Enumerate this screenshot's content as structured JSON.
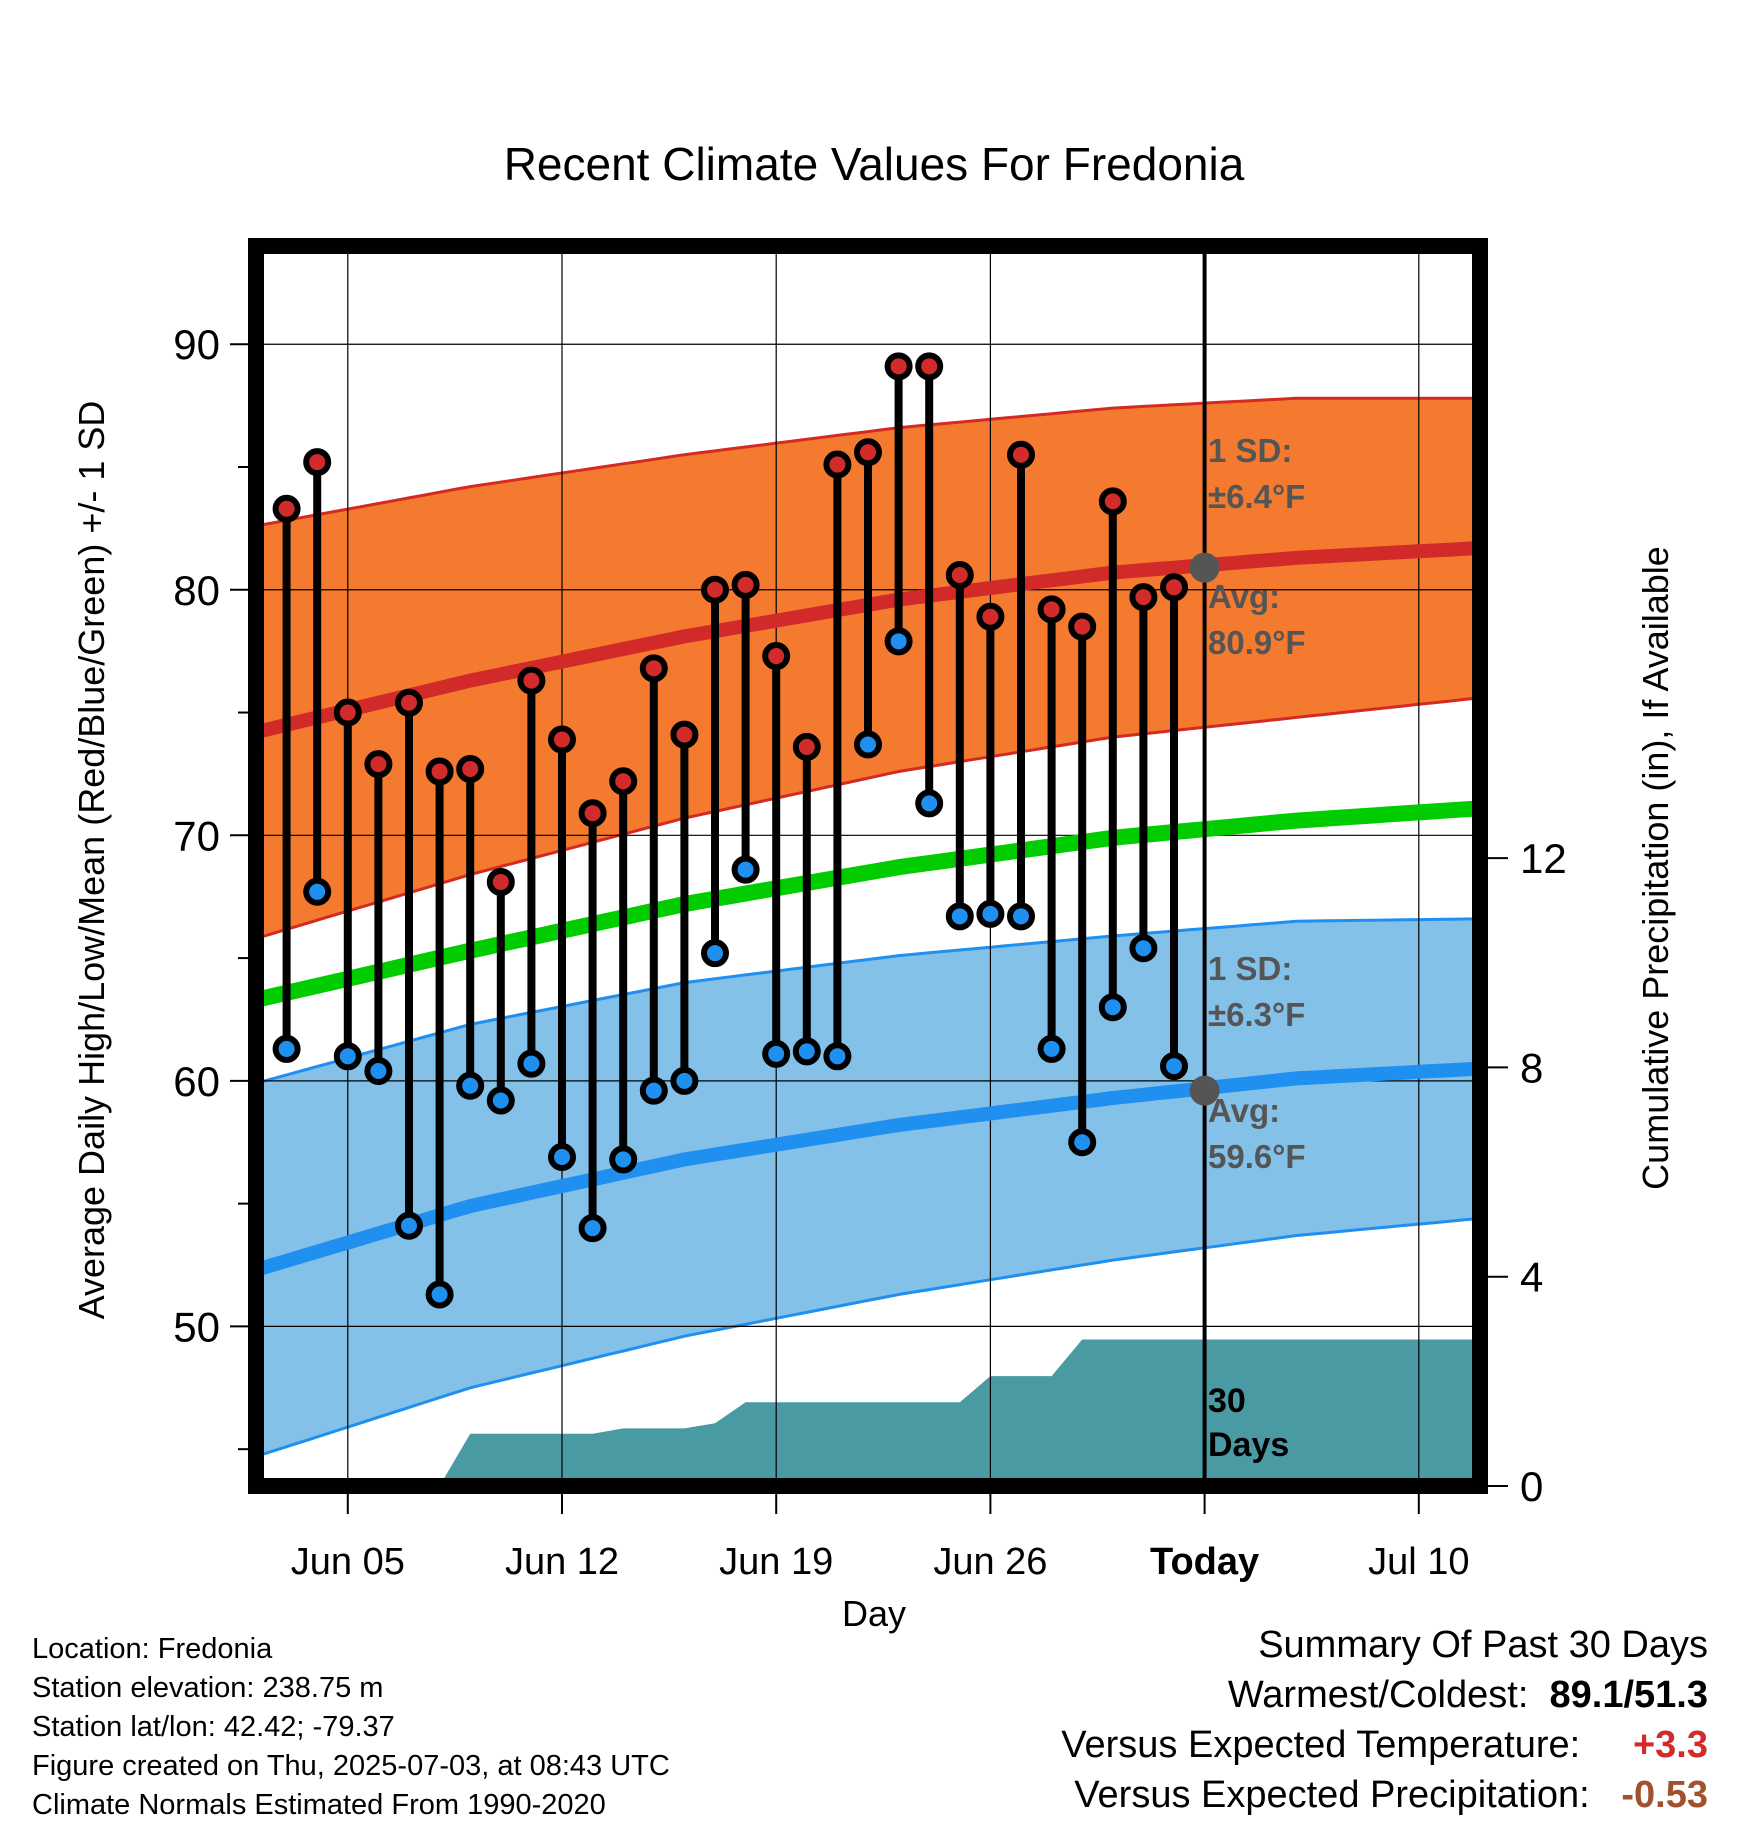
{
  "chart_data": {
    "type": "line",
    "title": "Recent Climate Values For Fredonia",
    "xlabel": "Day",
    "ylabel": "Average Daily High/Low/Mean (Red/Blue/Green) +/- 1 SD",
    "y2label": "Cumulative Precipitation (in), If Available",
    "ylim": [
      43.5,
      94
    ],
    "y2lim": [
      0,
      23.7
    ],
    "yticks": [
      50,
      60,
      70,
      80,
      90
    ],
    "y2ticks": [
      0,
      4,
      8,
      12
    ],
    "xlim": [
      "2025-06-02",
      "2025-07-12"
    ],
    "xticks": [
      {
        "date": "2025-06-05",
        "label": "Jun 05"
      },
      {
        "date": "2025-06-12",
        "label": "Jun 12"
      },
      {
        "date": "2025-06-19",
        "label": "Jun 19"
      },
      {
        "date": "2025-06-26",
        "label": "Jun 26"
      },
      {
        "date": "2025-07-03",
        "label": "Today"
      },
      {
        "date": "2025-07-10",
        "label": "Jul 10"
      }
    ],
    "grid": true,
    "today": "2025-07-03",
    "normals": {
      "dates": [
        "2025-06-02",
        "2025-06-09",
        "2025-06-16",
        "2025-06-23",
        "2025-06-30",
        "2025-07-06",
        "2025-07-12"
      ],
      "high_mean": [
        74.2,
        76.3,
        78.1,
        79.6,
        80.7,
        81.3,
        81.7
      ],
      "high_sd": [
        8.4,
        7.9,
        7.4,
        7.0,
        6.7,
        6.5,
        6.1
      ],
      "mean": [
        63.3,
        65.3,
        67.2,
        68.7,
        69.9,
        70.6,
        71.1
      ],
      "low_mean": [
        52.3,
        54.9,
        56.8,
        58.2,
        59.3,
        60.1,
        60.5
      ],
      "low_sd": [
        7.6,
        7.4,
        7.2,
        6.9,
        6.6,
        6.4,
        6.1
      ]
    },
    "today_high_avg": 80.9,
    "today_low_avg": 59.6,
    "series": [
      {
        "name": "High",
        "color": "#d22b2b",
        "dates": [
          "2025-06-03",
          "2025-06-04",
          "2025-06-05",
          "2025-06-06",
          "2025-06-07",
          "2025-06-08",
          "2025-06-09",
          "2025-06-10",
          "2025-06-11",
          "2025-06-12",
          "2025-06-13",
          "2025-06-14",
          "2025-06-15",
          "2025-06-16",
          "2025-06-17",
          "2025-06-18",
          "2025-06-19",
          "2025-06-20",
          "2025-06-21",
          "2025-06-22",
          "2025-06-23",
          "2025-06-24",
          "2025-06-25",
          "2025-06-26",
          "2025-06-27",
          "2025-06-28",
          "2025-06-29",
          "2025-06-30",
          "2025-07-01",
          "2025-07-02"
        ],
        "values": [
          83.3,
          85.2,
          75.0,
          72.9,
          75.4,
          72.6,
          72.7,
          68.1,
          76.3,
          73.9,
          70.9,
          72.2,
          76.8,
          74.1,
          80.0,
          80.2,
          77.3,
          73.6,
          85.1,
          85.6,
          89.1,
          89.1,
          80.6,
          78.9,
          85.5,
          79.2,
          78.5,
          83.6,
          79.7,
          80.1
        ]
      },
      {
        "name": "Low",
        "color": "#1f8ff0",
        "dates": [
          "2025-06-03",
          "2025-06-04",
          "2025-06-05",
          "2025-06-06",
          "2025-06-07",
          "2025-06-08",
          "2025-06-09",
          "2025-06-10",
          "2025-06-11",
          "2025-06-12",
          "2025-06-13",
          "2025-06-14",
          "2025-06-15",
          "2025-06-16",
          "2025-06-17",
          "2025-06-18",
          "2025-06-19",
          "2025-06-20",
          "2025-06-21",
          "2025-06-22",
          "2025-06-23",
          "2025-06-24",
          "2025-06-25",
          "2025-06-26",
          "2025-06-27",
          "2025-06-28",
          "2025-06-29",
          "2025-06-30",
          "2025-07-01",
          "2025-07-02"
        ],
        "values": [
          61.3,
          67.7,
          61.0,
          60.4,
          54.1,
          51.3,
          59.8,
          59.2,
          60.7,
          56.9,
          54.0,
          56.8,
          59.6,
          60.0,
          65.2,
          68.6,
          61.1,
          61.2,
          61.0,
          73.7,
          77.9,
          71.3,
          66.7,
          66.8,
          66.7,
          61.3,
          57.5,
          63.0,
          65.4,
          60.6
        ]
      }
    ],
    "precip": {
      "dates": [
        "2025-06-08",
        "2025-06-09",
        "2025-06-13",
        "2025-06-14",
        "2025-06-16",
        "2025-06-17",
        "2025-06-18",
        "2025-06-19",
        "2025-06-25",
        "2025-06-26",
        "2025-06-27",
        "2025-06-28",
        "2025-06-29",
        "2025-06-30",
        "2025-07-12"
      ],
      "values": [
        0.0,
        1.0,
        1.0,
        1.1,
        1.1,
        1.2,
        1.6,
        1.6,
        1.6,
        2.1,
        2.1,
        2.1,
        2.8,
        2.8,
        2.8
      ],
      "label_top": "30",
      "label_bottom": "Days"
    },
    "annotations": {
      "high_sd_line1": "1 SD:",
      "high_sd_line2": "±6.4°F",
      "high_avg_line1": "Avg:",
      "high_avg_line2": "80.9°F",
      "low_sd_line1": "1 SD:",
      "low_sd_line2": "±6.3°F",
      "low_avg_line1": "Avg:",
      "low_avg_line2": "59.6°F"
    }
  },
  "colors": {
    "high_band": "#f47a30",
    "high_edge": "#d42a22",
    "high_line": "#d22a28",
    "low_band": "#84c1e8",
    "low_edge": "#1f8ff0",
    "low_line": "#1f8ff0",
    "mean_line": "#00cc00",
    "precip": "#4a9aa3",
    "annotation": "#555555",
    "high_dot": "#d22b2b",
    "low_dot": "#1f8ff0",
    "warm_text": "#d22b2b",
    "precip_text": "#a0522d"
  },
  "footer": {
    "location": "Location: Fredonia",
    "elevation": "Station elevation: 238.75 m",
    "latlon": "Station lat/lon: 42.42; -79.37",
    "created": "Figure created on Thu, 2025-07-03, at 08:43 UTC",
    "normals": "Climate Normals Estimated From 1990-2020"
  },
  "summary": {
    "title": "Summary Of Past 30 Days",
    "warm_cold_label": "Warmest/Coldest:",
    "warm_cold_value": "89.1/51.3",
    "temp_label": "Versus Expected Temperature:",
    "temp_value": "+3.3",
    "precip_label": "Versus Expected Precipitation:",
    "precip_value": "-0.53"
  }
}
